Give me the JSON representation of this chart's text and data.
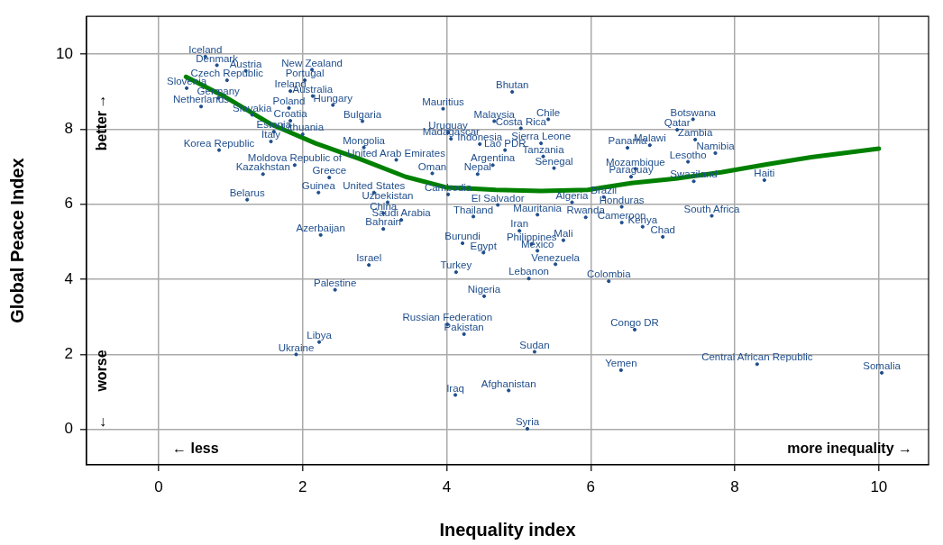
{
  "chart_data": {
    "type": "scatter",
    "xlabel": "Inequality index",
    "ylabel": "Global Peace Index",
    "xlim": [
      -1,
      10.69
    ],
    "ylim": [
      -0.94,
      11
    ],
    "xticks": [
      0,
      2,
      4,
      6,
      8,
      10
    ],
    "yticks": [
      0,
      2,
      4,
      6,
      8,
      10
    ],
    "grid": true,
    "legend": false,
    "annotations": [
      "↑",
      "better",
      "worse",
      "↓",
      "← less",
      "more inequality →"
    ],
    "series": [
      {
        "marker": "circle",
        "color": "#1f4e8c",
        "x": [
          0.65,
          0.81,
          1.21,
          2.13,
          0.95,
          2.03,
          1.83,
          0.39,
          0.83,
          0.59,
          2.14,
          2.42,
          1.81,
          1.3,
          1.83,
          2.83,
          1.6,
          2.0,
          1.56,
          0.84,
          2.85,
          1.89,
          1.45,
          2.37,
          3.3,
          2.22,
          2.99,
          4.02,
          3.18,
          1.23,
          3.12,
          3.37,
          3.12,
          2.25,
          2.92,
          2.45,
          3.95,
          4.91,
          4.66,
          5.41,
          5.03,
          4.02,
          4.06,
          4.46,
          4.81,
          5.31,
          5.34,
          6.51,
          6.82,
          4.64,
          5.49,
          6.62,
          4.43,
          3.8,
          6.56,
          6.18,
          7.43,
          5.74,
          6.43,
          7.68,
          5.93,
          6.43,
          6.72,
          7.0,
          4.71,
          4.37,
          5.26,
          5.01,
          4.22,
          4.51,
          5.18,
          5.26,
          5.62,
          5.51,
          4.13,
          5.14,
          6.25,
          4.52,
          4.01,
          4.24,
          6.61,
          2.23,
          1.91,
          5.22,
          6.42,
          8.31,
          10.04,
          4.12,
          4.86,
          5.12,
          7.42,
          7.2,
          7.45,
          7.73,
          7.35,
          8.41
        ],
        "values": [
          9.93,
          9.7,
          9.55,
          9.58,
          9.3,
          9.3,
          9.01,
          9.09,
          8.83,
          8.6,
          8.88,
          8.64,
          8.56,
          8.38,
          8.22,
          8.21,
          7.93,
          7.86,
          7.67,
          7.44,
          7.51,
          7.04,
          6.8,
          6.71,
          7.18,
          6.31,
          6.31,
          6.26,
          6.05,
          6.12,
          5.76,
          5.58,
          5.34,
          5.18,
          4.38,
          3.72,
          8.54,
          8.99,
          8.21,
          8.26,
          8.02,
          7.91,
          7.74,
          7.6,
          7.44,
          7.62,
          7.27,
          7.5,
          7.57,
          7.04,
          6.96,
          6.94,
          6.8,
          6.82,
          6.73,
          6.19,
          6.61,
          6.05,
          5.93,
          5.69,
          5.65,
          5.51,
          5.4,
          5.13,
          5.98,
          5.67,
          5.72,
          5.29,
          4.96,
          4.71,
          4.94,
          4.76,
          5.04,
          4.4,
          4.19,
          4.02,
          3.95,
          3.55,
          2.8,
          2.54,
          2.66,
          2.33,
          2.0,
          2.07,
          1.58,
          1.74,
          1.51,
          0.92,
          1.04,
          0.02,
          8.26,
          7.98,
          7.72,
          7.36,
          7.13,
          6.64
        ],
        "value_labels": [
          "Iceland",
          "Denmark",
          "Austria",
          "New Zealand",
          "Czech Republic",
          "Portugal",
          "Ireland",
          "Slovenia",
          "Germany",
          "Netherlands",
          "Australia",
          "Hungary",
          "Poland",
          "Slovakia",
          "Croatia",
          "Bulgaria",
          "Estonia",
          "Lithuania",
          "Italy",
          "Korea Republic",
          "Mongolia",
          "Moldova Republic of",
          "Kazakhstan",
          "Greece",
          "United Arab Emirates",
          "Guinea",
          "United States",
          "Cambodia",
          "Uzbekistan",
          "Belarus",
          "China",
          "Saudi Arabia",
          "Bahrain",
          "Azerbaijan",
          "Israel",
          "Palestine",
          "Mauritius",
          "Bhutan",
          "Malaysia",
          "Chile",
          "Costa Rica",
          "Uruguay",
          "Madagascar",
          "Indonesia",
          "Lao PDR",
          "Sierra Leone",
          "Tanzania",
          "Panama",
          "Malawi",
          "Argentina",
          "Senegal",
          "Mozambique",
          "Nepal",
          "Oman",
          "Paraguay",
          "Brazil",
          "Swaziland",
          "Algeria",
          "Honduras",
          "South Africa",
          "Rwanda",
          "Cameroon",
          "Kenya",
          "Chad",
          "El Salvador",
          "Thailand",
          "Mauritania",
          "Iran",
          "Burundi",
          "Egypt",
          "Philippines",
          "Mexico",
          "Mali",
          "Venezuela",
          "Turkey",
          "Lebanon",
          "Colombia",
          "Nigeria",
          "Russian Federation",
          "Pakistan",
          "Congo DR",
          "Libya",
          "Ukraine",
          "Sudan",
          "Yemen",
          "Central African Republic",
          "Somalia",
          "Iraq",
          "Afghanistan",
          "Syria",
          "Botswana",
          "Qatar",
          "Zambia",
          "Namibia",
          "Lesotho",
          "Haiti"
        ]
      },
      {
        "type": "line",
        "marker": "none",
        "line_style": "solid",
        "color": "#008000",
        "x": [
          0.38,
          0.93,
          1.55,
          2.18,
          2.8,
          3.43,
          3.99,
          4.68,
          5.31,
          5.96,
          6.56,
          7.18,
          7.81,
          8.44,
          9.06,
          10.0
        ],
        "values": [
          9.39,
          8.85,
          8.14,
          7.62,
          7.2,
          6.73,
          6.45,
          6.38,
          6.35,
          6.38,
          6.56,
          6.68,
          6.85,
          7.06,
          7.25,
          7.48
        ]
      }
    ]
  }
}
